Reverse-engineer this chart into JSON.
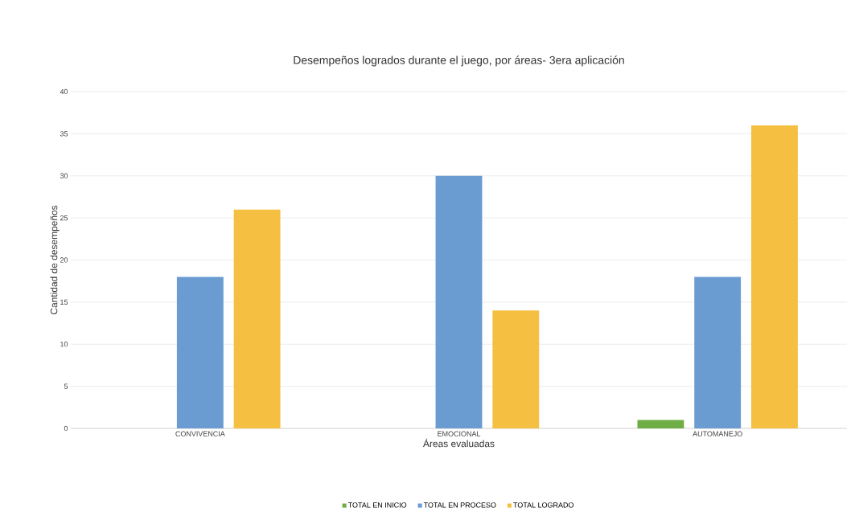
{
  "chart_data": {
    "type": "bar",
    "title": "Desempeños logrados durante el juego, por áreas- 3era aplicación",
    "xlabel": "Áreas evaluadas",
    "ylabel": "Cantidad de desempeños",
    "categories": [
      "CONVIVENCIA",
      "EMOCIONAL",
      "AUTOMANEJO"
    ],
    "series": [
      {
        "name": "TOTAL EN INICIO",
        "color": "#70ad47",
        "values": [
          0,
          0,
          1
        ]
      },
      {
        "name": "TOTAL EN PROCESO",
        "color": "#6a9bd1",
        "values": [
          18,
          30,
          18
        ]
      },
      {
        "name": "TOTAL LOGRADO",
        "color": "#f5c042",
        "values": [
          26,
          14,
          36
        ]
      }
    ],
    "ylim": [
      0,
      40
    ],
    "yticks": [
      0,
      5,
      10,
      15,
      20,
      25,
      30,
      35,
      40
    ],
    "grid": "y",
    "legend": "bottom"
  }
}
